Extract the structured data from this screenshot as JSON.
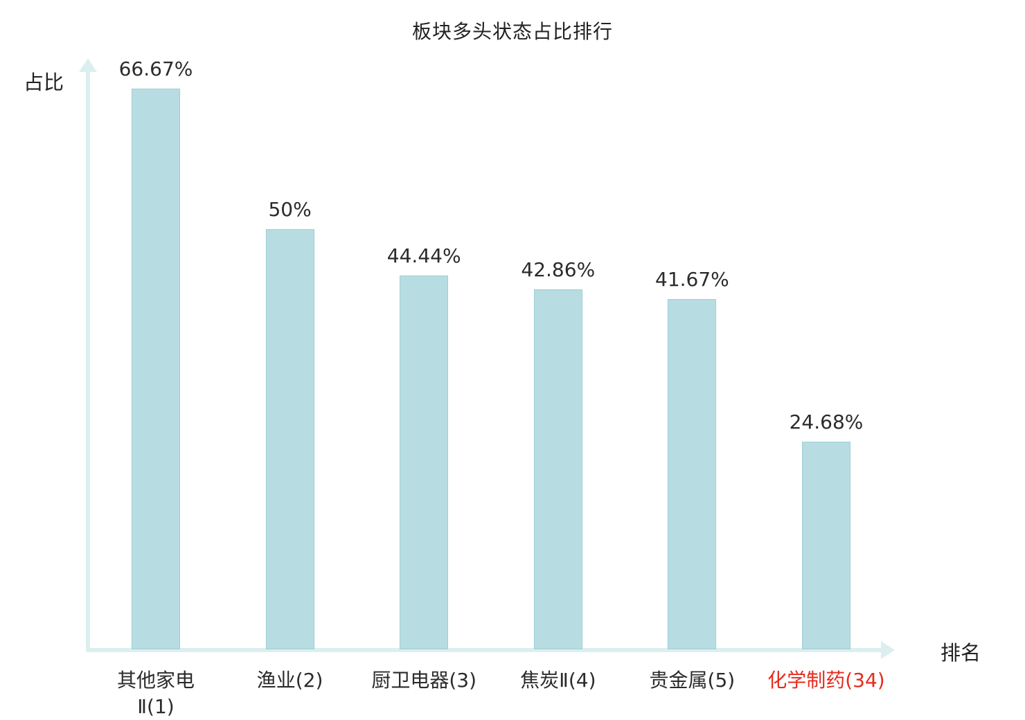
{
  "chart_data": {
    "type": "bar",
    "title": "板块多头状态占比排行",
    "xlabel": "排名",
    "ylabel": "占比",
    "categories": [
      "其他家电\nⅡ(1)",
      "渔业(2)",
      "厨卫电器(3)",
      "焦炭Ⅱ(4)",
      "贵金属(5)",
      "化学制药(34)"
    ],
    "values": [
      66.67,
      50,
      44.44,
      42.86,
      41.67,
      24.68
    ],
    "value_labels": [
      "66.67%",
      "50%",
      "44.44%",
      "42.86%",
      "41.67%",
      "24.68%"
    ],
    "ylim": [
      0,
      70
    ],
    "grid": false,
    "legend": "none",
    "highlight_index": 5,
    "colors": {
      "bar_fill": "#b7dde2",
      "bar_border": "#9fcdd5",
      "axis": "#dcefef",
      "text": "#2b2b2b",
      "highlight_text": "#e62b1e"
    }
  }
}
